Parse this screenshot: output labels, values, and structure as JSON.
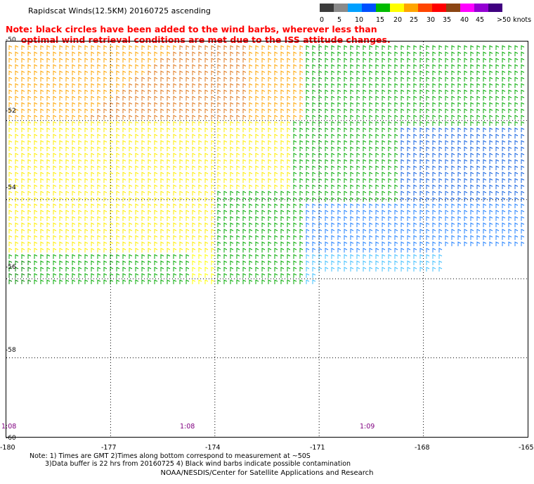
{
  "title": "Rapidscat Winds(12.5KM) 20160725 ascending",
  "note_line1": "Note: black circles have been added to the wind barbs, wherever less than",
  "note_line2": "     optimal wind retrieval conditions are met due to the ISS attitude changes.",
  "legend": {
    "labels": [
      "0",
      "5",
      "10",
      "15",
      "20",
      "25",
      "30",
      "35",
      "40",
      "45",
      ">50 knots"
    ],
    "colors": [
      "#3c3c3c",
      "#8a8a8a",
      "#00a0ff",
      "#0050ff",
      "#00bb00",
      "#ffff00",
      "#ffa500",
      "#ff4500",
      "#ff0000",
      "#8b4513",
      "#ff00ff",
      "#9400d3",
      "#400080"
    ]
  },
  "lat_labels": [
    "-50",
    "-52",
    "-54",
    "-56",
    "-58",
    "-60"
  ],
  "lon_labels": [
    "-180",
    "-177",
    "-174",
    "-171",
    "-168",
    "-165"
  ],
  "time_labels": [
    "1:08",
    "1:08",
    "1:09"
  ],
  "footnote_line1": "Note: 1) Times are GMT 2)Times along bottom correspond to measurement at ~50S",
  "footnote_line2": "3)Data buffer is 22 hrs from 20160725 4) Black wind barbs indicate possible contamination",
  "credit": "NOAA/NESDIS/Center for Satellite Applications and Research",
  "map": {
    "lon_range": [
      -180,
      -165
    ],
    "lat_range": [
      -60,
      -50
    ],
    "grid_lon": [
      -177,
      -174,
      -171,
      -168
    ],
    "grid_lat": [
      -52,
      -54,
      -56,
      -58
    ],
    "grid": true
  }
}
